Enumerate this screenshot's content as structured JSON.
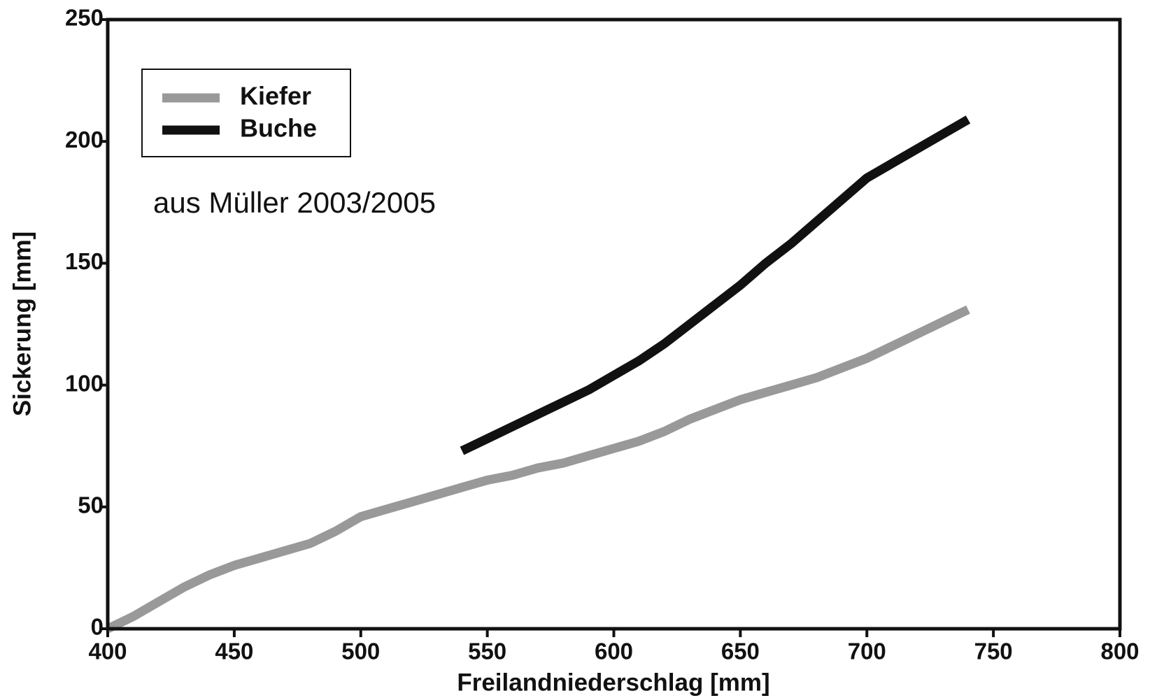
{
  "chart_data": {
    "type": "line",
    "x_label": "Freilandniederschlag [mm]",
    "y_label": "Sickerung [mm]",
    "annotation": "aus Müller 2003/2005",
    "x": [
      400,
      410,
      420,
      430,
      440,
      450,
      460,
      470,
      480,
      490,
      500,
      510,
      520,
      530,
      540,
      550,
      560,
      570,
      580,
      590,
      600,
      610,
      620,
      630,
      640,
      650,
      660,
      670,
      680,
      690,
      700,
      710,
      720,
      730,
      740
    ],
    "series": [
      {
        "name": "Kiefer",
        "color": "#999999",
        "values": [
          0,
          5,
          11,
          17,
          22,
          26,
          29,
          32,
          35,
          40,
          46,
          49,
          52,
          55,
          58,
          61,
          63,
          66,
          68,
          71,
          74,
          77,
          81,
          86,
          90,
          94,
          97,
          100,
          103,
          107,
          111,
          116,
          121,
          126,
          131
        ]
      },
      {
        "name": "Buche",
        "color": "#111111",
        "values": [
          null,
          null,
          null,
          null,
          null,
          null,
          null,
          null,
          null,
          null,
          null,
          null,
          null,
          null,
          73,
          78,
          83,
          88,
          93,
          98,
          104,
          110,
          117,
          125,
          133,
          141,
          150,
          158,
          167,
          176,
          185,
          191,
          197,
          203,
          209
        ]
      }
    ],
    "xlim": [
      400,
      800
    ],
    "xticks": [
      400,
      450,
      500,
      550,
      600,
      650,
      700,
      750,
      800
    ],
    "ylim": [
      0,
      250
    ],
    "yticks": [
      0,
      50,
      100,
      150,
      200,
      250
    ],
    "legend": "upper left",
    "grid": false
  }
}
